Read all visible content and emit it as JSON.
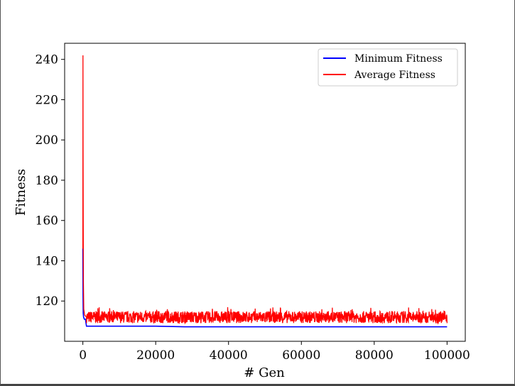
{
  "chart_data": {
    "type": "line",
    "title": "",
    "xlabel": "# Gen",
    "ylabel": "Fitness",
    "xlim": [
      -5000,
      105000
    ],
    "ylim": [
      100,
      248
    ],
    "x_ticks": [
      0,
      20000,
      40000,
      60000,
      80000,
      100000
    ],
    "y_ticks": [
      120,
      140,
      160,
      180,
      200,
      220,
      240
    ],
    "grid": false,
    "legend_position": "top-right",
    "series": [
      {
        "name": "Minimum Fitness",
        "color": "#0000ff",
        "x": [
          0,
          50,
          100,
          200,
          400,
          700,
          1000,
          5000,
          20000,
          28000,
          40000,
          60000,
          80000,
          100000
        ],
        "y": [
          146,
          123,
          114,
          112,
          111,
          111,
          107.5,
          107.5,
          107.5,
          107.2,
          107.2,
          107.2,
          107.2,
          107.2
        ]
      },
      {
        "name": "Average Fitness",
        "color": "#ff0000",
        "x": [
          0,
          30,
          60,
          100,
          150,
          250,
          500,
          1000,
          15000,
          39000,
          60000,
          80000,
          100000
        ],
        "y": [
          146,
          242,
          195,
          160,
          130,
          116,
          113,
          112,
          112,
          112,
          112,
          112,
          112
        ],
        "noise_band": [
          108.5,
          115.5
        ]
      }
    ]
  }
}
